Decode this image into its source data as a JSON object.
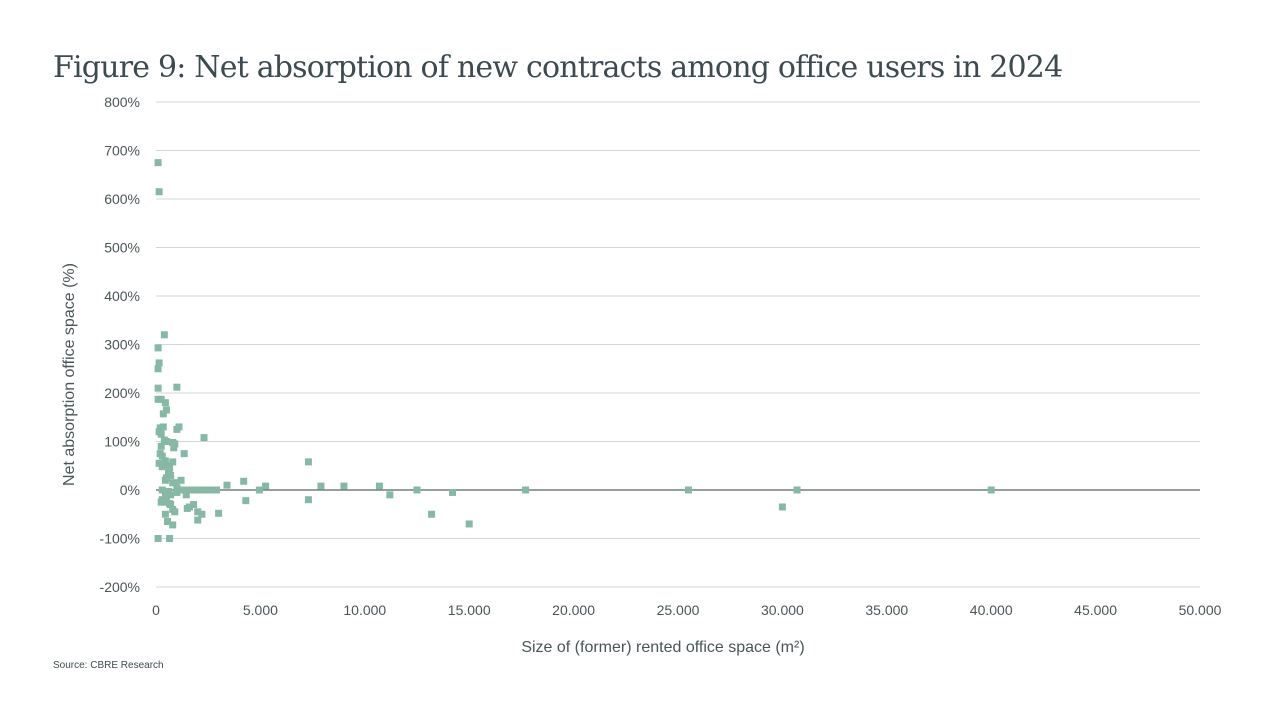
{
  "header": {
    "title": "Figure 9: Net absorption of new contracts among office users in 2024"
  },
  "footer": {
    "source": "Source: CBRE Research"
  },
  "colors": {
    "marker": "#86b8a5",
    "gridline": "#d3d6d7",
    "zero_line": "#5a6367"
  },
  "chart_data": {
    "type": "scatter",
    "title": "Figure 9: Net absorption of new contracts among office users in 2024",
    "xlabel": "Size of (former) rented office space  (m²)",
    "ylabel": "Net absorption office space (%)",
    "xlim": [
      0,
      50000
    ],
    "ylim": [
      -200,
      800
    ],
    "grid": true,
    "legend": "none",
    "x_ticks": [
      0,
      5000,
      10000,
      15000,
      20000,
      25000,
      30000,
      35000,
      40000,
      45000,
      50000
    ],
    "x_tick_labels": [
      "0",
      "5.000",
      "10.000",
      "15.000",
      "20.000",
      "25.000",
      "30.000",
      "35.000",
      "40.000",
      "45.000",
      "50.000"
    ],
    "y_ticks": [
      -200,
      -100,
      0,
      100,
      200,
      300,
      400,
      500,
      600,
      700,
      800
    ],
    "y_tick_labels": [
      "-200%",
      "-100%",
      "0%",
      "100%",
      "200%",
      "300%",
      "400%",
      "500%",
      "600%",
      "700%",
      "800%"
    ],
    "series": [
      {
        "name": "Office users",
        "points": [
          [
            100,
            675
          ],
          [
            150,
            615
          ],
          [
            100,
            293
          ],
          [
            400,
            320
          ],
          [
            150,
            262
          ],
          [
            100,
            250
          ],
          [
            100,
            210
          ],
          [
            100,
            187
          ],
          [
            250,
            187
          ],
          [
            450,
            180
          ],
          [
            500,
            165
          ],
          [
            350,
            157
          ],
          [
            1000,
            212
          ],
          [
            1100,
            130
          ],
          [
            1000,
            125
          ],
          [
            350,
            130
          ],
          [
            200,
            128
          ],
          [
            150,
            120
          ],
          [
            250,
            115
          ],
          [
            400,
            103
          ],
          [
            500,
            100
          ],
          [
            250,
            90
          ],
          [
            800,
            98
          ],
          [
            850,
            87
          ],
          [
            900,
            95
          ],
          [
            2300,
            108
          ],
          [
            1350,
            75
          ],
          [
            200,
            75
          ],
          [
            300,
            70
          ],
          [
            150,
            55
          ],
          [
            300,
            48
          ],
          [
            450,
            60
          ],
          [
            550,
            50
          ],
          [
            650,
            45
          ],
          [
            800,
            58
          ],
          [
            600,
            35
          ],
          [
            700,
            30
          ],
          [
            500,
            25
          ],
          [
            450,
            20
          ],
          [
            800,
            15
          ],
          [
            900,
            15
          ],
          [
            1200,
            20
          ],
          [
            1000,
            5
          ],
          [
            1100,
            0
          ],
          [
            1300,
            0
          ],
          [
            1500,
            0
          ],
          [
            1700,
            0
          ],
          [
            1900,
            0
          ],
          [
            2100,
            0
          ],
          [
            2300,
            0
          ],
          [
            2500,
            0
          ],
          [
            2700,
            0
          ],
          [
            2900,
            0
          ],
          [
            300,
            0
          ],
          [
            450,
            -8
          ],
          [
            600,
            -3
          ],
          [
            700,
            -10
          ],
          [
            1000,
            -5
          ],
          [
            300,
            -20
          ],
          [
            250,
            -25
          ],
          [
            400,
            -25
          ],
          [
            500,
            -15
          ],
          [
            650,
            -28
          ],
          [
            700,
            -30
          ],
          [
            800,
            -40
          ],
          [
            900,
            -45
          ],
          [
            1450,
            -10
          ],
          [
            1600,
            -35
          ],
          [
            1500,
            -38
          ],
          [
            1800,
            -30
          ],
          [
            2000,
            -45
          ],
          [
            2200,
            -50
          ],
          [
            2000,
            -62
          ],
          [
            3000,
            -48
          ],
          [
            450,
            -50
          ],
          [
            550,
            -65
          ],
          [
            800,
            -72
          ],
          [
            650,
            -100
          ],
          [
            100,
            -100
          ],
          [
            3400,
            10
          ],
          [
            4200,
            18
          ],
          [
            4300,
            -22
          ],
          [
            4950,
            0
          ],
          [
            5250,
            8
          ],
          [
            7300,
            58
          ],
          [
            7300,
            -20
          ],
          [
            7900,
            8
          ],
          [
            9000,
            8
          ],
          [
            10700,
            8
          ],
          [
            11200,
            -10
          ],
          [
            12500,
            0
          ],
          [
            13200,
            -50
          ],
          [
            14200,
            -5
          ],
          [
            15000,
            -70
          ],
          [
            17700,
            0
          ],
          [
            25500,
            0
          ],
          [
            30000,
            -35
          ],
          [
            30700,
            0
          ],
          [
            40000,
            0
          ]
        ]
      }
    ]
  }
}
